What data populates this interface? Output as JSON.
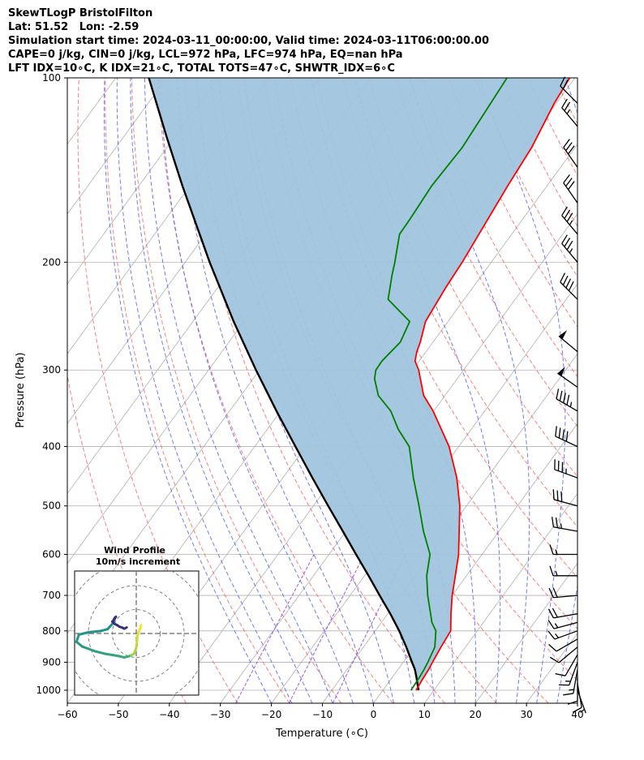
{
  "header": {
    "line1": "SkewTLogP BristolFilton",
    "line2": "Lat: 51.52   Lon: -2.59",
    "line3": "Simulation start time: 2024-03-11_00:00:00, Valid time: 2024-03-11T06:00:00.00",
    "line4": "CAPE=0 j/kg, CIN=0 j/kg, LCL=972 hPa, LFC=974 hPa, EQ=nan hPa",
    "line5": "LFT IDX=10∘C, K IDX=21∘C, TOTAL TOTS=47∘C, SHWTR_IDX=6∘C"
  },
  "chart_data": {
    "type": "line",
    "subtype": "skew-t log-p diagram",
    "xlabel": "Temperature (∘C)",
    "ylabel": "Pressure (hPa)",
    "xlim": [
      -60,
      40
    ],
    "ylim": [
      1050,
      100
    ],
    "y_scale": "log",
    "x_ticks": [
      -60,
      -50,
      -40,
      -30,
      -20,
      -10,
      0,
      10,
      20,
      30,
      40
    ],
    "x_tick_labels": [
      "−60",
      "−50",
      "−40",
      "−30",
      "−20",
      "−10",
      "0",
      "10",
      "20",
      "30",
      "40"
    ],
    "y_ticks": [
      1000,
      900,
      800,
      700,
      600,
      500,
      400,
      300,
      200,
      100
    ],
    "grid": true,
    "colors": {
      "temperature": "#ff0000",
      "dewpoint": "#008000",
      "parcel": "#000000",
      "shade": "#a0c4de",
      "isotherm": "#b0b0b0",
      "dry_adiabat": "#ff5050",
      "moist_adiabat": "#3a50ff",
      "mixing_ratio": "#8a2be2"
    },
    "series": [
      {
        "key": "temperature",
        "p": [
          1000,
          960,
          925,
          900,
          850,
          800,
          750,
          700,
          650,
          600,
          550,
          500,
          450,
          400,
          350,
          330,
          300,
          290,
          280,
          270,
          250,
          220,
          200,
          150,
          130,
          110,
          100
        ],
        "t": [
          6.5,
          6.2,
          6.0,
          5.7,
          5.2,
          4.8,
          2.4,
          0.0,
          -2.2,
          -4.6,
          -7.8,
          -11.3,
          -15.9,
          -21.9,
          -30.1,
          -34.2,
          -38.8,
          -40.8,
          -41.8,
          -42.5,
          -44.4,
          -45.3,
          -45.7,
          -47.7,
          -48.5,
          -50.4,
          -51.0
        ]
      },
      {
        "key": "dewpoint",
        "p": [
          1000,
          975,
          950,
          925,
          900,
          850,
          800,
          775,
          750,
          700,
          650,
          600,
          550,
          500,
          450,
          400,
          375,
          350,
          330,
          310,
          300,
          290,
          270,
          250,
          230,
          210,
          200,
          180,
          170,
          150,
          130,
          100
        ],
        "t": [
          5.5,
          5.4,
          5.3,
          5.1,
          4.8,
          4.0,
          1.9,
          -0.1,
          -1.6,
          -4.8,
          -7.8,
          -10.2,
          -14.8,
          -19.3,
          -24.4,
          -29.7,
          -34.3,
          -38.4,
          -43.1,
          -46.2,
          -47.2,
          -47.3,
          -46.4,
          -47.5,
          -54.9,
          -57.6,
          -58.9,
          -62.0,
          -62.1,
          -62.6,
          -62.1,
          -63.3
        ]
      },
      {
        "key": "parcel",
        "p": [
          1000,
          975,
          950,
          925,
          900,
          850,
          800,
          750,
          700,
          650,
          600,
          550,
          500,
          450,
          400,
          350,
          300,
          250,
          200,
          150,
          125,
          100
        ],
        "t": [
          7.0,
          5.8,
          4.6,
          3.3,
          1.7,
          -1.6,
          -5.3,
          -9.5,
          -14.2,
          -19.2,
          -24.7,
          -30.6,
          -37.1,
          -44.2,
          -52.0,
          -60.8,
          -70.7,
          -82.0,
          -95.2,
          -111.5,
          -121.5,
          -133.5
        ]
      }
    ],
    "wind_barbs": [
      {
        "p": 1000,
        "speed_kt": 5,
        "dir": 160
      },
      {
        "p": 975,
        "speed_kt": 10,
        "dir": 170
      },
      {
        "p": 950,
        "speed_kt": 10,
        "dir": 180
      },
      {
        "p": 925,
        "speed_kt": 15,
        "dir": 190
      },
      {
        "p": 900,
        "speed_kt": 15,
        "dir": 200
      },
      {
        "p": 875,
        "speed_kt": 10,
        "dir": 210
      },
      {
        "p": 850,
        "speed_kt": 10,
        "dir": 230
      },
      {
        "p": 825,
        "speed_kt": 10,
        "dir": 240
      },
      {
        "p": 800,
        "speed_kt": 15,
        "dir": 250
      },
      {
        "p": 775,
        "speed_kt": 15,
        "dir": 255
      },
      {
        "p": 750,
        "speed_kt": 20,
        "dir": 260
      },
      {
        "p": 700,
        "speed_kt": 20,
        "dir": 265
      },
      {
        "p": 650,
        "speed_kt": 15,
        "dir": 270
      },
      {
        "p": 600,
        "speed_kt": 15,
        "dir": 270
      },
      {
        "p": 550,
        "speed_kt": 25,
        "dir": 280
      },
      {
        "p": 500,
        "speed_kt": 30,
        "dir": 285
      },
      {
        "p": 450,
        "speed_kt": 35,
        "dir": 290
      },
      {
        "p": 400,
        "speed_kt": 40,
        "dir": 295
      },
      {
        "p": 350,
        "speed_kt": 45,
        "dir": 300
      },
      {
        "p": 320,
        "speed_kt": 50,
        "dir": 305
      },
      {
        "p": 280,
        "speed_kt": 50,
        "dir": 310
      },
      {
        "p": 230,
        "speed_kt": 40,
        "dir": 315
      },
      {
        "p": 200,
        "speed_kt": 35,
        "dir": 320
      },
      {
        "p": 180,
        "speed_kt": 35,
        "dir": 320
      },
      {
        "p": 160,
        "speed_kt": 30,
        "dir": 325
      },
      {
        "p": 140,
        "speed_kt": 30,
        "dir": 325
      },
      {
        "p": 120,
        "speed_kt": 25,
        "dir": 320
      },
      {
        "p": 110,
        "speed_kt": 20,
        "dir": 315
      }
    ],
    "hodograph": {
      "title": "Wind Profile",
      "subtitle": "10m/s increment",
      "u": [
        2.0,
        1.6,
        1.0,
        0.5,
        0.3,
        0.2,
        -0.3,
        -1.0,
        -3.0,
        -5.0,
        -7.2,
        -10.0,
        -13.0,
        -17.0,
        -22.5,
        -25.0,
        -24.0,
        -20.0,
        -15.0,
        -12.0,
        -10.0,
        -9.5,
        -9.0,
        -8.5,
        -9.0,
        -9.5,
        -10.0,
        -9.0,
        -8.0,
        -7.0,
        -6.0,
        -5.0,
        -4.0
      ],
      "v": [
        3.5,
        2.0,
        0.5,
        -1.0,
        -3.0,
        -5.0,
        -7.0,
        -8.5,
        -9.5,
        -10.0,
        -9.5,
        -9.0,
        -8.5,
        -7.5,
        -5.5,
        -3.5,
        -0.5,
        0.5,
        1.0,
        1.8,
        4.0,
        5.0,
        6.0,
        7.0,
        6.5,
        5.5,
        5.0,
        4.0,
        3.5,
        2.8,
        2.5,
        2.0,
        2.5
      ]
    }
  }
}
